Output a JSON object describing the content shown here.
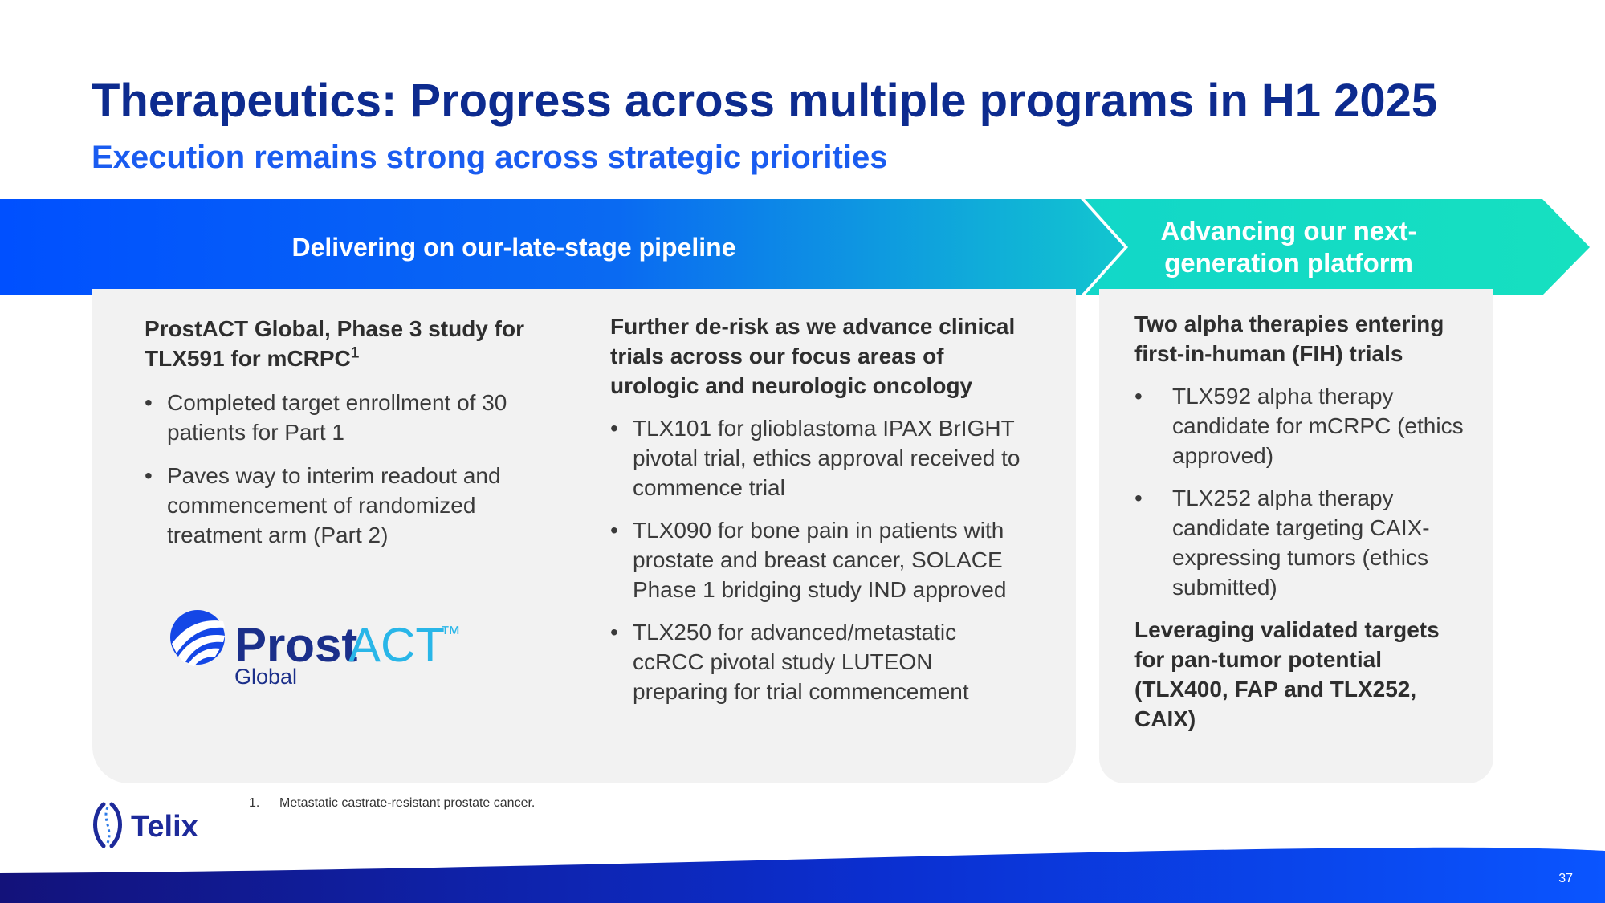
{
  "header": {
    "title": "Therapeutics: Progress across multiple programs in H1 2025",
    "subtitle": "Execution remains strong across strategic priorities"
  },
  "banner": {
    "left_label": "Delivering on our-late-stage pipeline",
    "right_label": "Advancing our next-generation platform"
  },
  "column1": {
    "heading": "ProstACT Global, Phase 3 study for TLX591 for mCRPC",
    "heading_sup": "1",
    "bullets": [
      "Completed target enrollment of 30 patients for Part 1",
      "Paves way to interim readout and commencement of randomized treatment arm (Part 2)"
    ]
  },
  "prostact_logo": {
    "word1": "Prost",
    "word2": "ACT",
    "tm": "™",
    "sub": "Global"
  },
  "column2": {
    "heading": "Further de-risk as we advance clinical trials across our focus areas of urologic and neurologic oncology",
    "bullets": [
      "TLX101 for glioblastoma IPAX BrIGHT pivotal trial, ethics approval received to commence trial",
      "TLX090 for bone pain in patients with prostate and breast cancer, SOLACE Phase 1 bridging study IND approved",
      "TLX250 for advanced/metastatic ccRCC pivotal study LUTEON preparing for trial commencement"
    ]
  },
  "column3": {
    "heading": "Two alpha therapies entering first-in-human (FIH) trials",
    "bullets": [
      "TLX592 alpha therapy candidate for mCRPC (ethics approved)",
      "TLX252 alpha therapy candidate targeting CAIX-expressing tumors (ethics submitted)"
    ],
    "heading2": "Leveraging validated targets for pan-tumor potential (TLX400, FAP and TLX252, CAIX)"
  },
  "footnote": {
    "number": "1.",
    "text": "Metastatic castrate-resistant prostate cancer."
  },
  "telix_logo": {
    "text": "Telix"
  },
  "page_number": "37",
  "colors": {
    "title": "#0d2b8f",
    "subtitle": "#1a5cf0",
    "banner_start": "#0050ff",
    "banner_end": "#12d3c4",
    "panel": "#f2f2f2"
  }
}
